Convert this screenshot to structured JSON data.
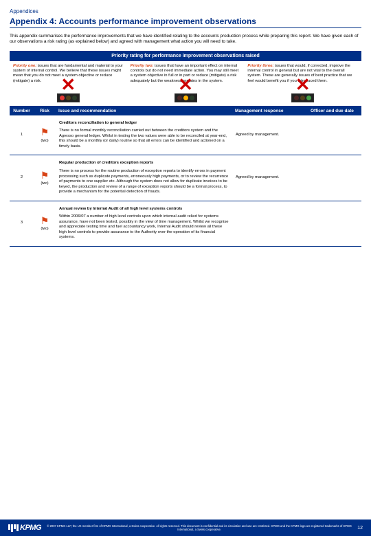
{
  "breadcrumb": "Appendices",
  "title": "Appendix 4: Accounts performance improvement observations",
  "intro": "This appendix summarises the performance improvements that we have identified relating to the accounts production process while preparing this report. We have given each of our observations a risk rating (as explained below) and agreed with management what action you will need to take.",
  "header_bar": "Priority rating for performance improvement observations raised",
  "priorities": [
    {
      "label": "Priority one:",
      "text": " issues that are fundamental and material to your system of internal control. We believe that these issues might mean that you do not meet a system objective or reduce (mitigate) a risk."
    },
    {
      "label": "Priority two:",
      "text": " issues that have an important effect on internal controls but do not need immediate action. You may still meet a system objective in full or in part or reduce (mitigate) a risk adequately but the weakness remains in the system."
    },
    {
      "label": "Priority three:",
      "text": " issues that would, if corrected, improve the internal control in general but are not vital to the overall system. These are generally issues of best practice that we feel would benefit you if you introduced them."
    }
  ],
  "columns": [
    "Number",
    "Risk",
    "Issue and recommendation",
    "Management response",
    "Officer and due date"
  ],
  "rows": [
    {
      "num": "1",
      "risk": "(two)",
      "title": "Creditors reconciliation to general ledger",
      "body": "There is no formal monthly reconciliation carried out between the creditors system and the Agresso general ledger. Whilst in testing the two values were able to be reconciled at year-end, this should be a monthly (or daily) routine so that all errors can be identified and actioned on a timely basis.",
      "resp": "Agreed by management."
    },
    {
      "num": "2",
      "risk": "(two)",
      "title": "Regular production of creditors exception reports",
      "body": "There is no process for the routine production of exception reports to identify errors in payment processing such as duplicate payments, erroneously high payments, or to review the recurrence of payments to one supplier etc. Although the system does not allow for duplicate invoices to be keyed, the production and review of a range of exception reports should be a formal process, to provide a mechanism for the potential detection of frauds.",
      "resp": "Agreed by management."
    },
    {
      "num": "3",
      "risk": "(two)",
      "title": "Annual review by Internal Audit of all high level systems controls",
      "body": "Within 2006/07 a number of high level controls upon which internal audit relied for systems assurance, have not been tested, possibly in the view of time management. Whilst we recognise and appreciate testing time and fuel accountancy work, Internal Audit should review all these high level controls to provide assurance to the Authority over the operation of its financial systems.",
      "resp": ""
    }
  ],
  "footer_text": "© 2007 KPMG LLP, the UK member firm of KPMG International, a Swiss cooperative. All rights reserved. This document is confidential and its circulation and use are restricted.\nKPMG and the KPMG logo are registered trademarks of KPMG International, a Swiss cooperative.",
  "page_num": "12",
  "logo": "KPMG"
}
